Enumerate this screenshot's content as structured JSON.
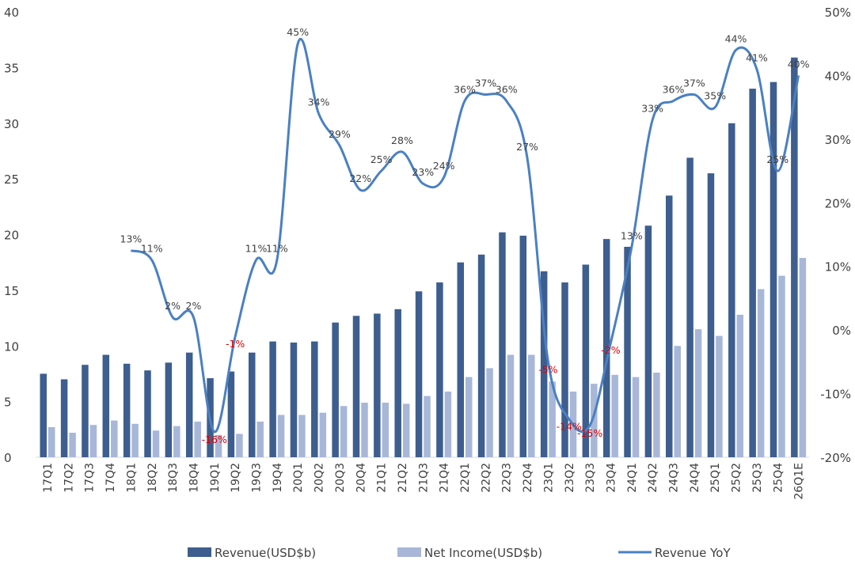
{
  "chart_data": {
    "type": "bar",
    "title": "",
    "xlabel": "",
    "ylabel": "",
    "ylim": [
      0,
      40
    ],
    "y2lim": [
      -20,
      50
    ],
    "yticks": [
      "0",
      "5",
      "10",
      "15",
      "20",
      "25",
      "30",
      "35",
      "40"
    ],
    "y2ticks": [
      "-20%",
      "-10%",
      "0%",
      "10%",
      "20%",
      "30%",
      "40%",
      "50%"
    ],
    "categories": [
      "17Q1",
      "17Q2",
      "17Q3",
      "17Q4",
      "18Q1",
      "18Q2",
      "18Q3",
      "18Q4",
      "19Q1",
      "19Q2",
      "19Q3",
      "19Q4",
      "20Q1",
      "20Q2",
      "20Q3",
      "20Q4",
      "21Q1",
      "21Q2",
      "21Q3",
      "21Q4",
      "22Q1",
      "22Q2",
      "22Q3",
      "22Q4",
      "23Q1",
      "23Q2",
      "23Q3",
      "23Q4",
      "24Q1",
      "24Q2",
      "24Q3",
      "24Q4",
      "25Q1",
      "25Q2",
      "25Q3",
      "25Q4",
      "26Q1E"
    ],
    "series": [
      {
        "name": "Revenue(USD$b)",
        "type": "bar",
        "axis": "left",
        "color": "#3d5e8e",
        "values": [
          7.5,
          7.0,
          8.3,
          9.2,
          8.4,
          7.8,
          8.5,
          9.4,
          7.1,
          7.7,
          9.4,
          10.4,
          10.3,
          10.4,
          12.1,
          12.7,
          12.9,
          13.3,
          14.9,
          15.7,
          17.5,
          18.2,
          20.2,
          19.9,
          16.7,
          15.7,
          17.3,
          19.6,
          18.9,
          20.8,
          23.5,
          26.9,
          25.5,
          30.0,
          33.1,
          33.7,
          35.9
        ]
      },
      {
        "name": "Net Income(USD$b)",
        "type": "bar",
        "axis": "left",
        "color": "#a8b7d8",
        "values": [
          2.7,
          2.2,
          2.9,
          3.3,
          3.0,
          2.4,
          2.8,
          3.2,
          2.0,
          2.1,
          3.2,
          3.8,
          3.8,
          4.0,
          4.6,
          4.9,
          4.9,
          4.8,
          5.5,
          5.9,
          7.2,
          8.0,
          9.2,
          9.2,
          6.8,
          5.9,
          6.6,
          7.4,
          7.2,
          7.6,
          10.0,
          11.5,
          10.9,
          12.8,
          15.1,
          16.3,
          17.9
        ]
      },
      {
        "name": "Revenue YoY",
        "type": "line",
        "axis": "right",
        "color": "#4a80c2",
        "values": [
          null,
          null,
          null,
          null,
          12.5,
          11.0,
          2.0,
          2.0,
          -16.0,
          -1.0,
          11.0,
          11.0,
          45.0,
          34.0,
          29.0,
          22.0,
          25.0,
          28.0,
          23.0,
          24.0,
          36.0,
          37.0,
          36.0,
          27.0,
          -5.0,
          -14.0,
          -15.0,
          -2.0,
          13.0,
          33.0,
          36.0,
          37.0,
          35.0,
          44.0,
          41.0,
          25.0,
          40.0
        ]
      }
    ],
    "line_labels": [
      {
        "index": 4,
        "text": "13%",
        "negative": false
      },
      {
        "index": 5,
        "text": "11%",
        "negative": false
      },
      {
        "index": 6,
        "text": "2%",
        "negative": false
      },
      {
        "index": 7,
        "text": "2%",
        "negative": false
      },
      {
        "index": 8,
        "text": "-16%",
        "negative": true
      },
      {
        "index": 9,
        "text": "-1%",
        "negative": true
      },
      {
        "index": 10,
        "text": "11%",
        "negative": false
      },
      {
        "index": 11,
        "text": "11%",
        "negative": false
      },
      {
        "index": 12,
        "text": "45%",
        "negative": false
      },
      {
        "index": 13,
        "text": "34%",
        "negative": false
      },
      {
        "index": 14,
        "text": "29%",
        "negative": false
      },
      {
        "index": 15,
        "text": "22%",
        "negative": false
      },
      {
        "index": 16,
        "text": "25%",
        "negative": false
      },
      {
        "index": 17,
        "text": "28%",
        "negative": false
      },
      {
        "index": 18,
        "text": "23%",
        "negative": false
      },
      {
        "index": 19,
        "text": "24%",
        "negative": false
      },
      {
        "index": 20,
        "text": "36%",
        "negative": false
      },
      {
        "index": 21,
        "text": "37%",
        "negative": false
      },
      {
        "index": 22,
        "text": "36%",
        "negative": false
      },
      {
        "index": 23,
        "text": "27%",
        "negative": false
      },
      {
        "index": 24,
        "text": "-5%",
        "negative": true
      },
      {
        "index": 25,
        "text": "-14%",
        "negative": true
      },
      {
        "index": 26,
        "text": "-15%",
        "negative": true
      },
      {
        "index": 27,
        "text": "-2%",
        "negative": true
      },
      {
        "index": 28,
        "text": "13%",
        "negative": false
      },
      {
        "index": 29,
        "text": "33%",
        "negative": false
      },
      {
        "index": 30,
        "text": "36%",
        "negative": false
      },
      {
        "index": 31,
        "text": "37%",
        "negative": false
      },
      {
        "index": 32,
        "text": "35%",
        "negative": false
      },
      {
        "index": 33,
        "text": "44%",
        "negative": false
      },
      {
        "index": 34,
        "text": "41%",
        "negative": false
      },
      {
        "index": 35,
        "text": "25%",
        "negative": false
      },
      {
        "index": 36,
        "text": "40%",
        "negative": false
      }
    ],
    "legend": {
      "position": "bottom",
      "items": [
        "Revenue(USD$b)",
        "Net Income(USD$b)",
        "Revenue YoY"
      ]
    },
    "grid": false,
    "colors": {
      "axis_text": "#404040",
      "negative_label": "#e00000",
      "positive_label": "#404040",
      "axis_line": "#d9d9d9"
    }
  }
}
